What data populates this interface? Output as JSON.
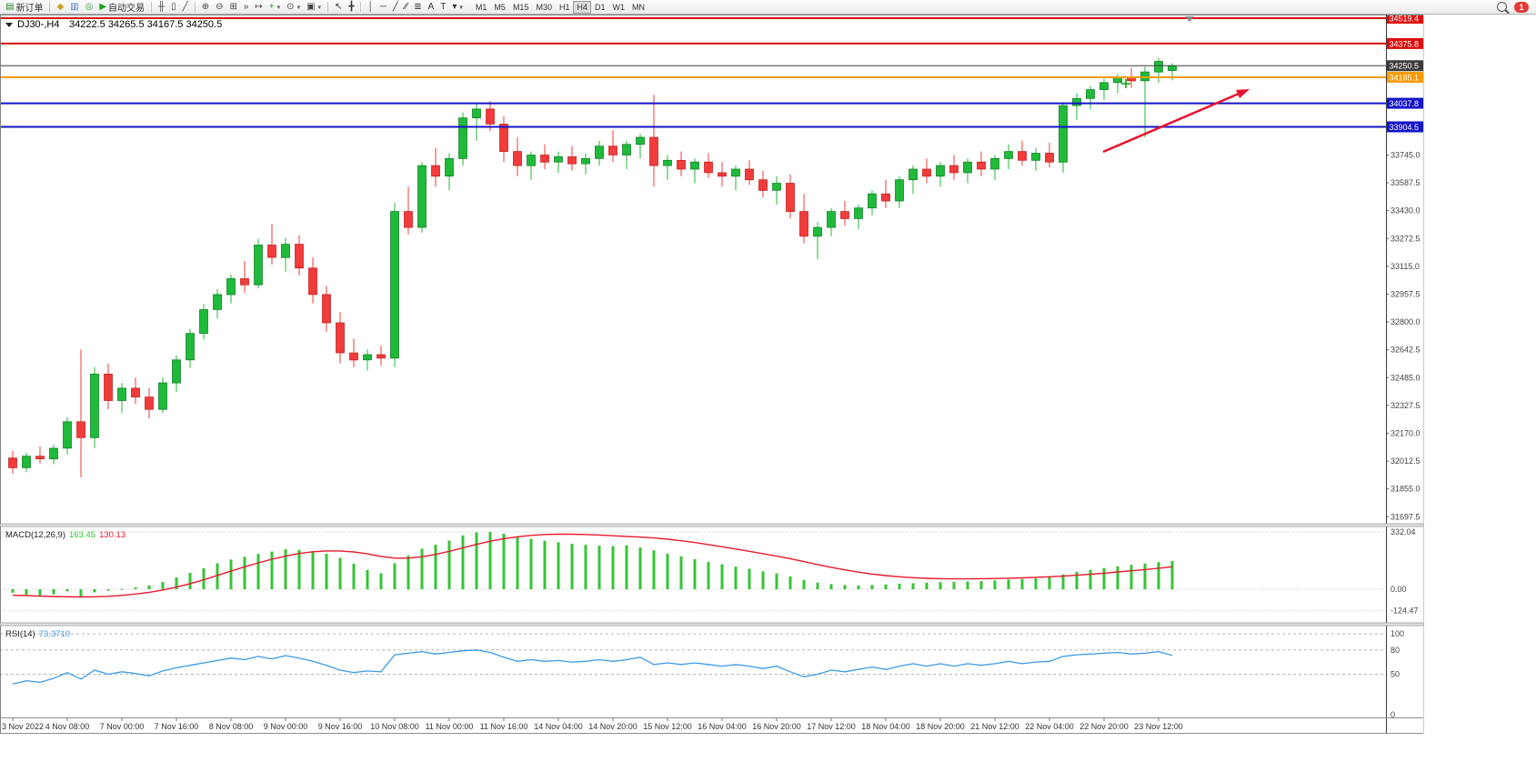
{
  "toolbar": {
    "notification_count": "1",
    "timeframes": [
      "M1",
      "M5",
      "M15",
      "M30",
      "H1",
      "H4",
      "D1",
      "W1",
      "MN"
    ],
    "active_timeframe": "H4",
    "items": [
      {
        "name": "new-order-button",
        "glyph": "▤",
        "glyph_color": "#2e7d32",
        "label": "新订单"
      },
      {
        "name": "separator"
      },
      {
        "name": "layouts-icon",
        "glyph": "◆",
        "glyph_color": "#c9a227"
      },
      {
        "name": "profiles-icon",
        "glyph": "▥",
        "glyph_color": "#4a7ebf"
      },
      {
        "name": "navigator-icon",
        "glyph": "◎",
        "glyph_color": "#3a9d3a"
      },
      {
        "name": "autotrading-button",
        "glyph": "▶",
        "glyph_color": "#18a018",
        "label": "自动交易"
      },
      {
        "name": "separator"
      },
      {
        "name": "bar-chart-icon",
        "glyph": "╫",
        "glyph_color": "#444"
      },
      {
        "name": "candlestick-chart-icon",
        "glyph": "▯",
        "glyph_color": "#444"
      },
      {
        "name": "line-chart-icon",
        "glyph": "╱",
        "glyph_color": "#444"
      },
      {
        "name": "separator"
      },
      {
        "name": "zoom-in-icon",
        "glyph": "⊕",
        "glyph_color": "#444"
      },
      {
        "name": "zoom-out-icon",
        "glyph": "⊖",
        "glyph_color": "#444"
      },
      {
        "name": "tile-windows-icon",
        "glyph": "⊞",
        "glyph_color": "#444"
      },
      {
        "name": "auto-scroll-icon",
        "glyph": "»",
        "glyph_color": "#444"
      },
      {
        "name": "chart-shift-icon",
        "glyph": "↦",
        "glyph_color": "#444"
      },
      {
        "name": "indicators-icon",
        "glyph": "+",
        "glyph_color": "#18a018",
        "caret": true
      },
      {
        "name": "periods-icon",
        "glyph": "⊙",
        "glyph_color": "#444",
        "caret": true
      },
      {
        "name": "templates-icon",
        "glyph": "▣",
        "glyph_color": "#444",
        "caret": true
      },
      {
        "name": "separator"
      },
      {
        "name": "cursor-icon",
        "glyph": "↖",
        "glyph_color": "#333"
      },
      {
        "name": "crosshair-icon",
        "glyph": "╋",
        "glyph_color": "#333"
      },
      {
        "name": "separator"
      },
      {
        "name": "vertical-line-icon",
        "glyph": "│",
        "glyph_color": "#333"
      },
      {
        "name": "horizontal-line-icon",
        "glyph": "─",
        "glyph_color": "#333"
      },
      {
        "name": "trendline-icon",
        "glyph": "╱",
        "glyph_color": "#333"
      },
      {
        "name": "channel-icon",
        "glyph": "∕∕",
        "glyph_color": "#333"
      },
      {
        "name": "fibonacci-icon",
        "glyph": "≣",
        "glyph_color": "#333"
      },
      {
        "name": "text-tool-icon",
        "glyph": "A",
        "glyph_color": "#333"
      },
      {
        "name": "label-tool-icon",
        "glyph": "T",
        "glyph_color": "#333"
      },
      {
        "name": "arrows-tool-icon",
        "glyph": "▾",
        "glyph_color": "#333",
        "caret": true
      }
    ]
  },
  "chart_data": {
    "type": "candlestick",
    "title": "DJ30-,H4",
    "symbol": "DJ30-",
    "timeframe": "H4",
    "ohlc_display": "34222.5 34265.5 34167.5 34250.5",
    "x_label_every": 4,
    "x_labels": [
      "3 Nov 2022",
      "4 Nov 08:00",
      "7 Nov 00:00",
      "7 Nov 16:00",
      "8 Nov 08:00",
      "9 Nov 00:00",
      "9 Nov 16:00",
      "10 Nov 08:00",
      "11 Nov 00:00",
      "11 Nov 16:00",
      "14 Nov 04:00",
      "14 Nov 20:00",
      "15 Nov 12:00",
      "16 Nov 04:00",
      "16 Nov 20:00",
      "17 Nov 12:00",
      "18 Nov 04:00",
      "18 Nov 20:00",
      "21 Nov 12:00",
      "22 Nov 04:00",
      "22 Nov 20:00",
      "23 Nov 12:00"
    ],
    "candles": [
      [
        32030,
        32070,
        31940,
        31975
      ],
      [
        31975,
        32060,
        31950,
        32040
      ],
      [
        32040,
        32095,
        32000,
        32025
      ],
      [
        32025,
        32105,
        31995,
        32085
      ],
      [
        32085,
        32260,
        32050,
        32235
      ],
      [
        32235,
        32645,
        31920,
        32145
      ],
      [
        32145,
        32545,
        32085,
        32505
      ],
      [
        32505,
        32565,
        32305,
        32355
      ],
      [
        32355,
        32455,
        32285,
        32425
      ],
      [
        32425,
        32485,
        32335,
        32375
      ],
      [
        32375,
        32425,
        32255,
        32305
      ],
      [
        32305,
        32485,
        32285,
        32455
      ],
      [
        32455,
        32610,
        32405,
        32585
      ],
      [
        32585,
        32760,
        32540,
        32735
      ],
      [
        32735,
        32900,
        32700,
        32870
      ],
      [
        32870,
        32985,
        32820,
        32955
      ],
      [
        32955,
        33070,
        32905,
        33045
      ],
      [
        33045,
        33145,
        32965,
        33010
      ],
      [
        33010,
        33270,
        32990,
        33235
      ],
      [
        33235,
        33355,
        33125,
        33165
      ],
      [
        33165,
        33275,
        33085,
        33240
      ],
      [
        33240,
        33290,
        33065,
        33105
      ],
      [
        33105,
        33165,
        32905,
        32955
      ],
      [
        32955,
        33005,
        32745,
        32795
      ],
      [
        32795,
        32855,
        32565,
        32625
      ],
      [
        32625,
        32705,
        32545,
        32585
      ],
      [
        32585,
        32645,
        32525,
        32615
      ],
      [
        32615,
        32665,
        32555,
        32595
      ],
      [
        32595,
        33475,
        32545,
        33425
      ],
      [
        33425,
        33565,
        33295,
        33335
      ],
      [
        33335,
        33705,
        33305,
        33685
      ],
      [
        33685,
        33785,
        33565,
        33625
      ],
      [
        33625,
        33755,
        33545,
        33725
      ],
      [
        33725,
        33985,
        33685,
        33955
      ],
      [
        33955,
        34035,
        33825,
        34005
      ],
      [
        34005,
        34050,
        33880,
        33920
      ],
      [
        33920,
        33965,
        33705,
        33765
      ],
      [
        33765,
        33845,
        33625,
        33685
      ],
      [
        33685,
        33765,
        33605,
        33745
      ],
      [
        33745,
        33805,
        33665,
        33705
      ],
      [
        33705,
        33765,
        33645,
        33735
      ],
      [
        33735,
        33795,
        33655,
        33695
      ],
      [
        33695,
        33755,
        33635,
        33725
      ],
      [
        33725,
        33825,
        33685,
        33795
      ],
      [
        33795,
        33885,
        33705,
        33745
      ],
      [
        33745,
        33825,
        33665,
        33805
      ],
      [
        33805,
        33865,
        33725,
        33845
      ],
      [
        33845,
        34085,
        33565,
        33685
      ],
      [
        33685,
        33745,
        33605,
        33715
      ],
      [
        33715,
        33765,
        33625,
        33665
      ],
      [
        33665,
        33725,
        33585,
        33705
      ],
      [
        33705,
        33755,
        33615,
        33645
      ],
      [
        33645,
        33705,
        33565,
        33625
      ],
      [
        33625,
        33685,
        33545,
        33665
      ],
      [
        33665,
        33715,
        33575,
        33605
      ],
      [
        33605,
        33655,
        33505,
        33545
      ],
      [
        33545,
        33625,
        33465,
        33585
      ],
      [
        33585,
        33635,
        33385,
        33425
      ],
      [
        33425,
        33525,
        33245,
        33285
      ],
      [
        33285,
        33365,
        33155,
        33335
      ],
      [
        33335,
        33445,
        33285,
        33425
      ],
      [
        33425,
        33485,
        33345,
        33385
      ],
      [
        33385,
        33465,
        33325,
        33445
      ],
      [
        33445,
        33545,
        33405,
        33525
      ],
      [
        33525,
        33605,
        33445,
        33485
      ],
      [
        33485,
        33625,
        33445,
        33605
      ],
      [
        33605,
        33685,
        33525,
        33665
      ],
      [
        33665,
        33725,
        33585,
        33625
      ],
      [
        33625,
        33705,
        33565,
        33685
      ],
      [
        33685,
        33745,
        33605,
        33645
      ],
      [
        33645,
        33725,
        33585,
        33705
      ],
      [
        33705,
        33765,
        33625,
        33665
      ],
      [
        33665,
        33745,
        33605,
        33725
      ],
      [
        33725,
        33805,
        33665,
        33765
      ],
      [
        33765,
        33825,
        33685,
        33715
      ],
      [
        33715,
        33785,
        33655,
        33755
      ],
      [
        33755,
        33815,
        33675,
        33705
      ],
      [
        33705,
        34045,
        33645,
        34025
      ],
      [
        34025,
        34095,
        33945,
        34065
      ],
      [
        34065,
        34135,
        34005,
        34115
      ],
      [
        34115,
        34175,
        34055,
        34155
      ],
      [
        34155,
        34205,
        34095,
        34185
      ],
      [
        34185,
        34235,
        34125,
        34165
      ],
      [
        34165,
        34245,
        33845,
        34215
      ],
      [
        34215,
        34295,
        34155,
        34275
      ],
      [
        34222.5,
        34265.5,
        34167.5,
        34250.5
      ]
    ],
    "price_axis": {
      "ticks": [
        "33745.0",
        "33587.5",
        "33430.0",
        "33272.5",
        "33115.0",
        "32957.5",
        "32800.0",
        "32642.5",
        "32485.0",
        "32327.5",
        "32170.0",
        "32012.5",
        "31855.0",
        "31697.5"
      ],
      "levels": [
        {
          "price": 34519.4,
          "label": "34519.4",
          "color": "#dd0f0f",
          "width": 2,
          "role": "resistance-line"
        },
        {
          "price": 34375.8,
          "label": "34375.8",
          "color": "#dd0f0f",
          "width": 2,
          "role": "resistance-line"
        },
        {
          "price": 34250.5,
          "label": "34250.5",
          "color": "#3c3c3c",
          "width": 1,
          "role": "current-price-line"
        },
        {
          "price": 34185.1,
          "label": "34185.1",
          "color": "#f59a00",
          "width": 2,
          "role": "pivot-line"
        },
        {
          "price": 34037.8,
          "label": "34037.8",
          "color": "#1414c8",
          "width": 2,
          "role": "support-line"
        },
        {
          "price": 33904.5,
          "label": "33904.5",
          "color": "#1414c8",
          "width": 2,
          "role": "support-line"
        }
      ]
    },
    "indicators": [
      {
        "type": "macd",
        "label": "MACD(12,26,9)",
        "main_value": "163.45",
        "signal_value": "130.13",
        "axis_ticks": [
          {
            "v": 332.04,
            "label": "332.04"
          },
          {
            "v": 0,
            "label": "0.00"
          },
          {
            "v": -124.47,
            "label": "-124.47"
          }
        ],
        "histogram": [
          -20,
          -32,
          -38,
          -30,
          -12,
          -42,
          -18,
          -8,
          2,
          10,
          22,
          42,
          68,
          95,
          122,
          150,
          172,
          188,
          205,
          218,
          232,
          228,
          220,
          205,
          182,
          148,
          112,
          92,
          150,
          195,
          235,
          258,
          282,
          312,
          330,
          332,
          322,
          305,
          292,
          281,
          272,
          264,
          257,
          252,
          250,
          254,
          242,
          225,
          206,
          190,
          174,
          159,
          145,
          131,
          119,
          104,
          91,
          74,
          54,
          38,
          30,
          25,
          22,
          25,
          28,
          32,
          35,
          38,
          41,
          43,
          45,
          47,
          51,
          56,
          59,
          63,
          69,
          86,
          101,
          113,
          123,
          133,
          141,
          149,
          157,
          163.45
        ],
        "signal": [
          -35,
          -37,
          -40,
          -42,
          -44,
          -45,
          -44,
          -41,
          -36,
          -28,
          -18,
          -5,
          12,
          32,
          55,
          80,
          105,
          130,
          153,
          174,
          192,
          207,
          217,
          222,
          222,
          216,
          205,
          190,
          180,
          180,
          188,
          202,
          220,
          240,
          260,
          278,
          293,
          304,
          312,
          317,
          319,
          319,
          317,
          314,
          310,
          306,
          302,
          297,
          290,
          281,
          271,
          259,
          246,
          233,
          220,
          206,
          192,
          177,
          160,
          143,
          127,
          112,
          99,
          88,
          79,
          72,
          67,
          63,
          61,
          60,
          60,
          61,
          62,
          64,
          66,
          69,
          72,
          76,
          81,
          87,
          93,
          100,
          107,
          114,
          122,
          130.13
        ]
      },
      {
        "type": "rsi",
        "label": "RSI(14)",
        "value": "73.3710",
        "axis_ticks": [
          {
            "v": 100,
            "label": "100"
          },
          {
            "v": 80,
            "label": "80"
          },
          {
            "v": 50,
            "label": "50"
          },
          {
            "v": 0,
            "label": "0"
          }
        ],
        "grid_levels": [
          100,
          80,
          50
        ],
        "series": [
          38,
          42,
          40,
          45,
          52,
          44,
          55,
          50,
          53,
          51,
          48,
          54,
          58,
          61,
          64,
          67,
          70,
          68,
          72,
          69,
          73,
          70,
          66,
          61,
          55,
          52,
          54,
          53,
          74,
          76,
          78,
          75,
          77,
          79,
          80,
          77,
          71,
          66,
          68,
          66,
          67,
          65,
          66,
          68,
          66,
          68,
          71,
          62,
          64,
          62,
          64,
          62,
          60,
          62,
          60,
          57,
          60,
          53,
          47,
          50,
          55,
          53,
          56,
          59,
          56,
          60,
          63,
          60,
          63,
          60,
          63,
          61,
          63,
          66,
          63,
          65,
          66,
          72,
          74,
          75,
          76,
          77,
          75,
          76,
          78,
          73.37
        ]
      }
    ],
    "annotations": {
      "trend_arrow": {
        "from": [
          1213,
          151
        ],
        "to": [
          1374,
          82
        ],
        "color": "#e8112d"
      },
      "plus_marker": {
        "x": 1238,
        "y": 76,
        "color": "#00a000"
      }
    },
    "colors": {
      "bull": "#1fba3a",
      "bull_border": "#0f7c26",
      "bear": "#f23b3b",
      "bear_border": "#c02020",
      "macd_hist": "#35c435",
      "macd_signal": "#e8192c",
      "rsi_line": "#3d9be9"
    }
  }
}
